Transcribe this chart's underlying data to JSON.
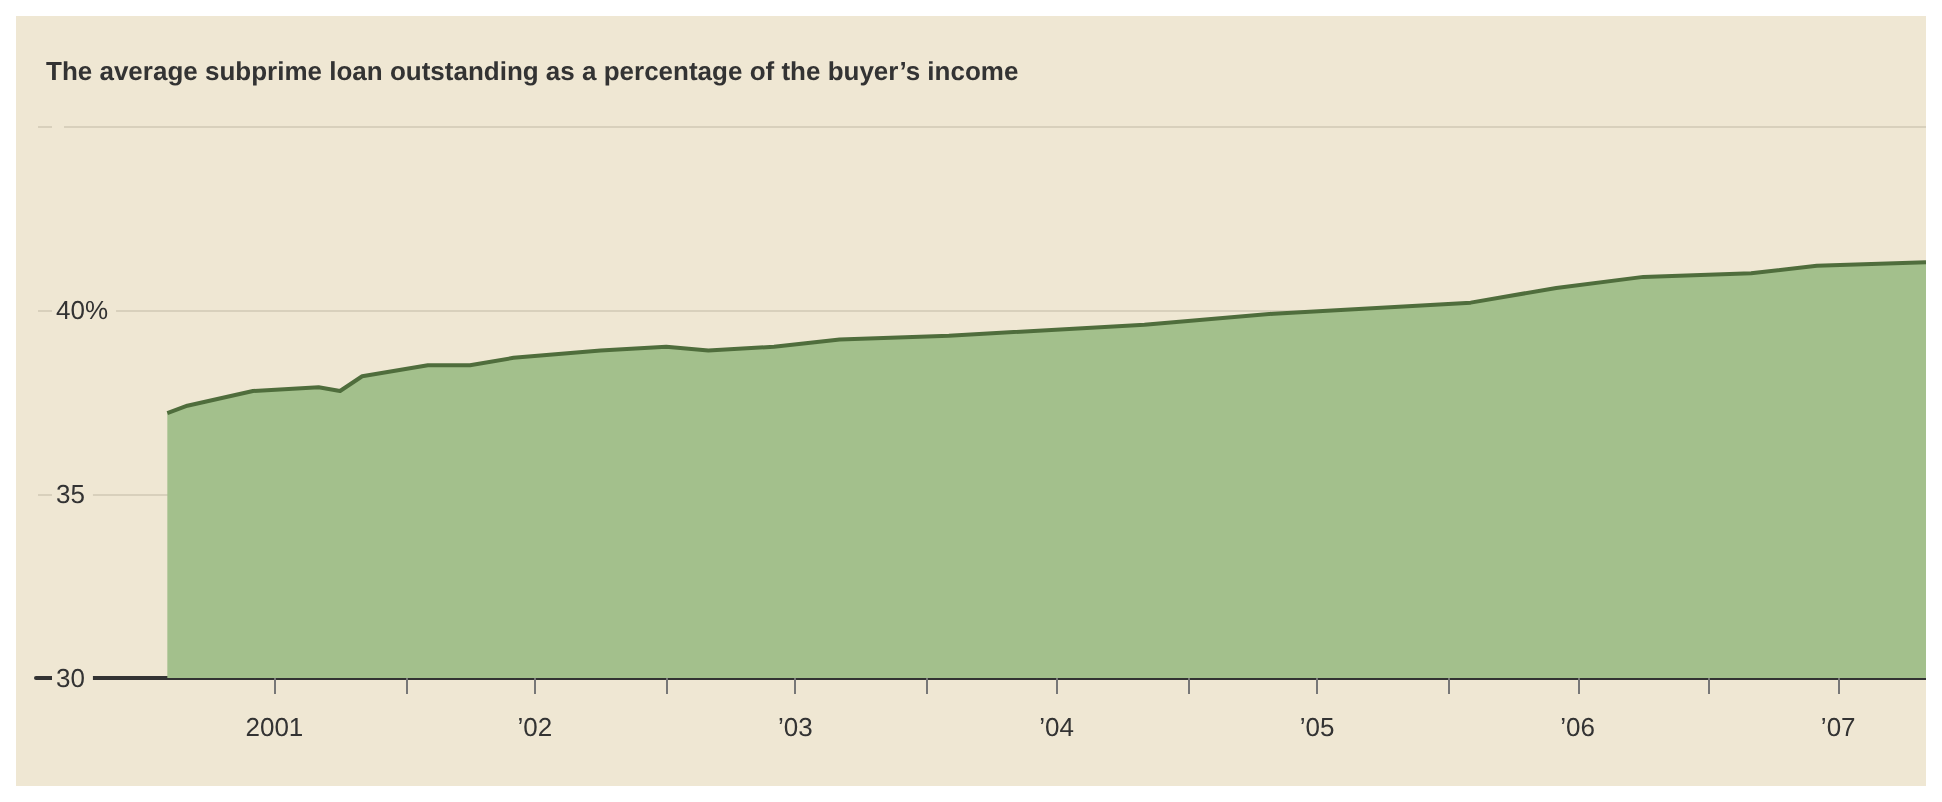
{
  "chart_data": {
    "type": "area",
    "title": "The average subprime loan outstanding as a percentage of the buyer’s income",
    "x": [
      "2001-02",
      "2001-03",
      "2001-06",
      "2001-09",
      "2001-10",
      "2001-11",
      "2002-02",
      "2002-04",
      "2002-06",
      "2002-10",
      "2003-01",
      "2003-03",
      "2003-06",
      "2003-09",
      "2004-02",
      "2004-11",
      "2005-05",
      "2006-02",
      "2006-06",
      "2006-10",
      "2007-03",
      "2007-06",
      "2007-11"
    ],
    "series": [
      {
        "color": "#a3c08c",
        "values": [
          37.2,
          37.4,
          37.8,
          37.9,
          37.8,
          38.2,
          38.5,
          38.5,
          38.7,
          38.9,
          39.0,
          38.9,
          39.0,
          39.2,
          39.3,
          39.6,
          39.9,
          40.2,
          40.6,
          40.9,
          41.0,
          41.2,
          41.3
        ]
      }
    ],
    "xlim": [
      "2000-08",
      "2007-11"
    ],
    "xticks": [
      {
        "value": "2001-07",
        "label": "2001"
      },
      {
        "value": "2002-01",
        "label": null
      },
      {
        "value": "2002-07",
        "label": "’02"
      },
      {
        "value": "2003-01",
        "label": null
      },
      {
        "value": "2003-07",
        "label": "’03"
      },
      {
        "value": "2004-01",
        "label": null
      },
      {
        "value": "2004-07",
        "label": "’04"
      },
      {
        "value": "2005-01",
        "label": null
      },
      {
        "value": "2005-07",
        "label": "’05"
      },
      {
        "value": "2006-01",
        "label": null
      },
      {
        "value": "2006-07",
        "label": "’06"
      },
      {
        "value": "2007-01",
        "label": null
      },
      {
        "value": "2007-07",
        "label": "’07"
      }
    ],
    "ylim": [
      30,
      45
    ],
    "yticks": [
      {
        "value": 30,
        "label": "30"
      },
      {
        "value": 35,
        "label": "35"
      },
      {
        "value": 40,
        "label": "40%"
      },
      {
        "value": 45,
        "label": null
      }
    ],
    "grid": "y"
  }
}
